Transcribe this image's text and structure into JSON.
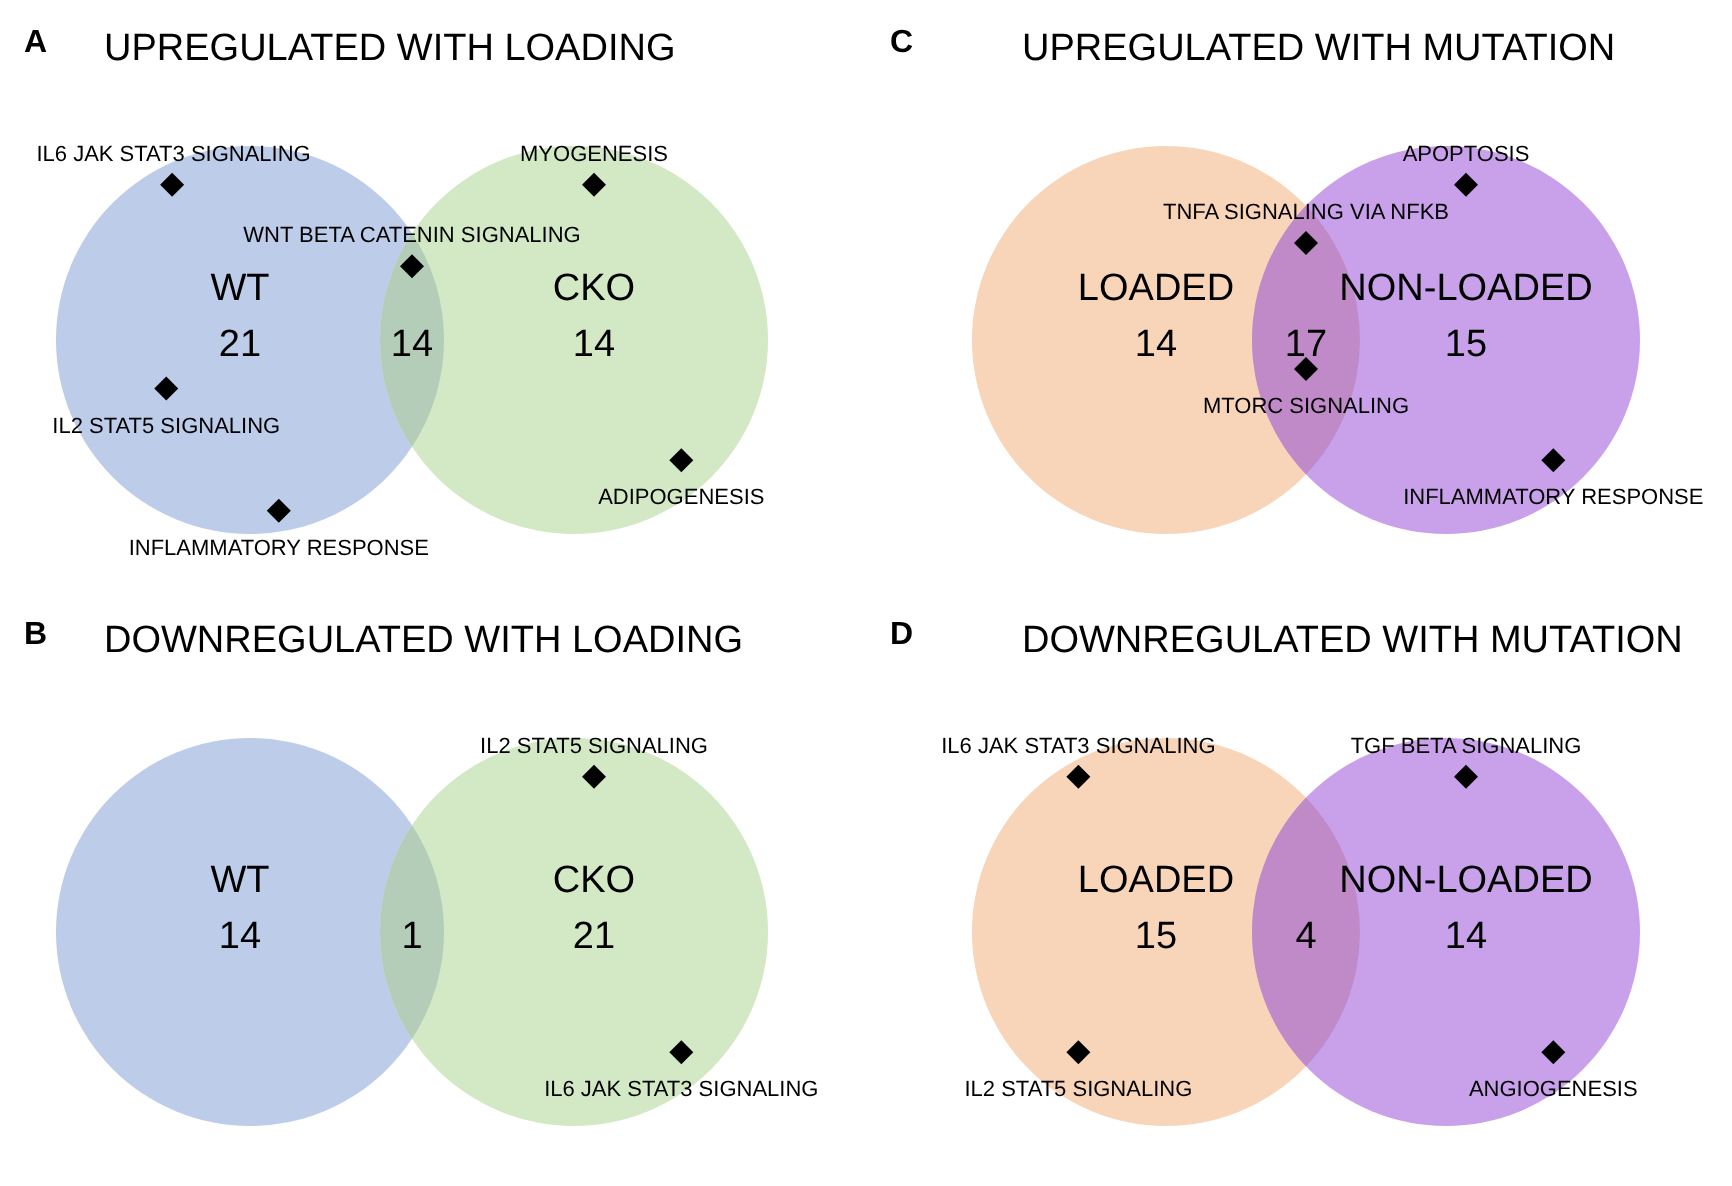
{
  "chart_data": [
    {
      "type": "other",
      "subtitle": "A",
      "title": "UPREGULATED WITH LOADING",
      "categories": [
        "WT",
        null,
        "CKO"
      ],
      "values": [
        21,
        14,
        14
      ],
      "data_labels": true,
      "colors": [
        "#bccce9",
        "#b3cdb8",
        "#d3e8c4"
      ],
      "annotations": [
        {
          "text": "IL6 JAK STAT3 SIGNALING",
          "x": "WT"
        },
        {
          "text": "IL2 STAT5 SIGNALING",
          "x": "WT"
        },
        {
          "text": "INFLAMMATORY RESPONSE",
          "x": "WT"
        },
        {
          "text": "WNT BETA CATENIN SIGNALING"
        },
        {
          "text": "MYOGENESIS",
          "x": "CKO"
        },
        {
          "text": "ADIPOGENESIS",
          "x": "CKO"
        }
      ]
    },
    {
      "type": "other",
      "subtitle": "C",
      "title": "UPREGULATED WITH MUTATION",
      "categories": [
        "LOADED",
        null,
        "NON-LOADED"
      ],
      "values": [
        14,
        17,
        15
      ],
      "data_labels": true,
      "colors": [
        "#f8d5b9",
        "#c08ac8",
        "#c9a0ea"
      ],
      "annotations": [
        {
          "text": "TNFA SIGNALING VIA NFKB"
        },
        {
          "text": "MTORC SIGNALING"
        },
        {
          "text": "APOPTOSIS",
          "x": "NON-LOADED"
        },
        {
          "text": "INFLAMMATORY RESPONSE",
          "x": "NON-LOADED"
        }
      ]
    },
    {
      "type": "other",
      "subtitle": "B",
      "title": "DOWNREGULATED WITH LOADING",
      "categories": [
        "WT",
        null,
        "CKO"
      ],
      "values": [
        14,
        1,
        21
      ],
      "data_labels": true,
      "colors": [
        "#bccce9",
        "#b3cdb8",
        "#d3e8c4"
      ],
      "annotations": [
        {
          "text": "IL2 STAT5 SIGNALING",
          "x": "CKO"
        },
        {
          "text": "IL6 JAK STAT3 SIGNALING",
          "x": "CKO"
        }
      ]
    },
    {
      "type": "other",
      "subtitle": "D",
      "title": "DOWNREGULATED WITH MUTATION",
      "categories": [
        "LOADED",
        null,
        "NON-LOADED"
      ],
      "values": [
        15,
        4,
        14
      ],
      "data_labels": true,
      "colors": [
        "#f8d5b9",
        "#c08ac8",
        "#c9a0ea"
      ],
      "annotations": [
        {
          "text": "IL6 JAK STAT3 SIGNALING",
          "x": "LOADED"
        },
        {
          "text": "IL2 STAT5 SIGNALING",
          "x": "LOADED"
        },
        {
          "text": "TGF BETA SIGNALING",
          "x": "NON-LOADED"
        },
        {
          "text": "ANGIOGENESIS",
          "x": "NON-LOADED"
        }
      ]
    }
  ]
}
